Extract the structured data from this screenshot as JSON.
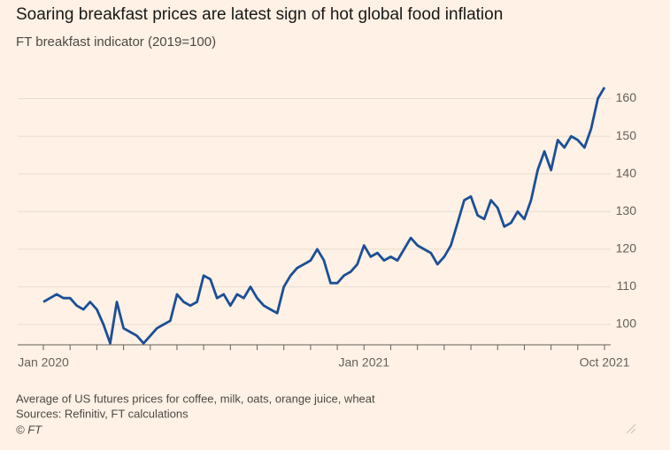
{
  "chart_data": {
    "type": "line",
    "title": "Soaring breakfast prices are latest sign of hot global food inflation",
    "subtitle": "FT breakfast indicator (2019=100)",
    "note": "Average of US futures prices for coffee, milk, oats, orange juice, wheat",
    "source": "Sources: Refinitiv, FT calculations",
    "credit": "© FT",
    "x": [
      "2020-01",
      "2020-01",
      "2020-01",
      "2020-01",
      "2020-02",
      "2020-02",
      "2020-02",
      "2020-02",
      "2020-03",
      "2020-03",
      "2020-03",
      "2020-03",
      "2020-04",
      "2020-04",
      "2020-04",
      "2020-04",
      "2020-05",
      "2020-05",
      "2020-05",
      "2020-05",
      "2020-06",
      "2020-06",
      "2020-06",
      "2020-06",
      "2020-07",
      "2020-07",
      "2020-07",
      "2020-07",
      "2020-08",
      "2020-08",
      "2020-08",
      "2020-08",
      "2020-09",
      "2020-09",
      "2020-09",
      "2020-09",
      "2020-10",
      "2020-10",
      "2020-10",
      "2020-10",
      "2020-11",
      "2020-11",
      "2020-11",
      "2020-11",
      "2020-12",
      "2020-12",
      "2020-12",
      "2020-12",
      "2021-01",
      "2021-01",
      "2021-01",
      "2021-01",
      "2021-02",
      "2021-02",
      "2021-02",
      "2021-02",
      "2021-03",
      "2021-03",
      "2021-03",
      "2021-03",
      "2021-04",
      "2021-04",
      "2021-04",
      "2021-04",
      "2021-05",
      "2021-05",
      "2021-05",
      "2021-05",
      "2021-06",
      "2021-06",
      "2021-06",
      "2021-06",
      "2021-07",
      "2021-07",
      "2021-07",
      "2021-07",
      "2021-08",
      "2021-08",
      "2021-08",
      "2021-08",
      "2021-09",
      "2021-09",
      "2021-09",
      "2021-09",
      "2021-10"
    ],
    "series": [
      {
        "name": "FT breakfast indicator",
        "color": "#1c4f96",
        "values": [
          106,
          107,
          108,
          107,
          107,
          105,
          104,
          106,
          104,
          100,
          95,
          106,
          99,
          98,
          97,
          95,
          97,
          99,
          100,
          101,
          108,
          106,
          105,
          106,
          113,
          112,
          107,
          108,
          105,
          108,
          107,
          110,
          107,
          105,
          104,
          103,
          110,
          113,
          115,
          116,
          117,
          120,
          117,
          111,
          111,
          113,
          114,
          116,
          121,
          118,
          119,
          117,
          118,
          117,
          120,
          123,
          121,
          120,
          119,
          116,
          118,
          121,
          127,
          133,
          134,
          129,
          128,
          133,
          131,
          126,
          127,
          130,
          128,
          133,
          141,
          146,
          141,
          149,
          147,
          150,
          149,
          147,
          152,
          160,
          163
        ]
      }
    ],
    "xticks": [
      "2020-01",
      "2020-02",
      "2020-03",
      "2020-04",
      "2020-05",
      "2020-06",
      "2020-07",
      "2020-08",
      "2020-09",
      "2020-10",
      "2020-11",
      "2020-12",
      "2021-01",
      "2021-02",
      "2021-03",
      "2021-04",
      "2021-05",
      "2021-06",
      "2021-07",
      "2021-08",
      "2021-09",
      "2021-10"
    ],
    "xtick_labels": [
      {
        "value": "2020-01",
        "label": "Jan 2020"
      },
      {
        "value": "2021-01",
        "label": "Jan 2021"
      },
      {
        "value": "2021-10",
        "label": "Oct 2021"
      }
    ],
    "ylim": [
      94.6,
      166
    ],
    "yticks": [
      100,
      110,
      120,
      130,
      140,
      150,
      160
    ],
    "grid": true
  }
}
